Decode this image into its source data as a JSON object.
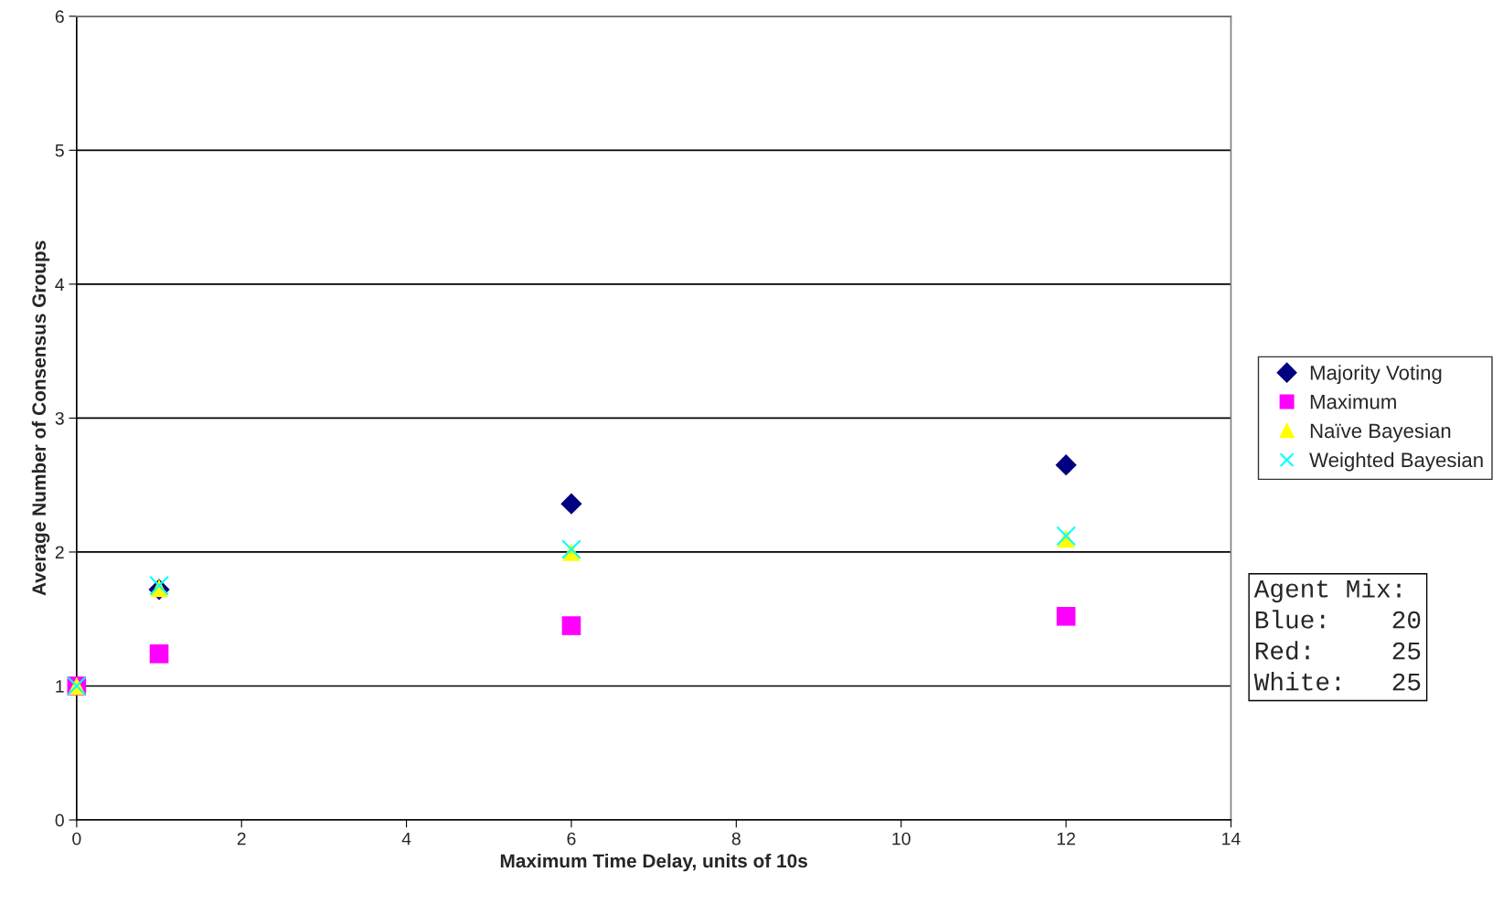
{
  "chart_data": {
    "type": "scatter",
    "xlabel": "Maximum Time Delay, units of 10s",
    "ylabel": "Average Number of Consensus Groups",
    "x": [
      0,
      1,
      6,
      12
    ],
    "series": [
      {
        "name": "Majority Voting",
        "color": "#000080",
        "marker": "diamond",
        "values": [
          null,
          1.72,
          2.36,
          2.65
        ]
      },
      {
        "name": "Maximum",
        "color": "#ff00ff",
        "marker": "square",
        "values": [
          1.0,
          1.24,
          1.45,
          1.52
        ]
      },
      {
        "name": "Naïve Bayesian",
        "color": "#ffff00",
        "marker": "triangle",
        "values": [
          1.0,
          1.73,
          2.0,
          2.1
        ]
      },
      {
        "name": "Weighted Bayesian",
        "color": "#00ffff",
        "marker": "cross",
        "values": [
          1.0,
          1.75,
          2.02,
          2.12
        ]
      }
    ],
    "xlim": [
      0,
      14
    ],
    "xticks": [
      0,
      2,
      4,
      6,
      8,
      10,
      12,
      14
    ],
    "ylim": [
      0,
      6
    ],
    "yticks": [
      0,
      1,
      2,
      3,
      4,
      5,
      6
    ],
    "grid": "y",
    "legend": "right",
    "annotations": [
      "Agent Mix:\nBlue:    20\nRed:     25\nWhite:   25"
    ]
  }
}
